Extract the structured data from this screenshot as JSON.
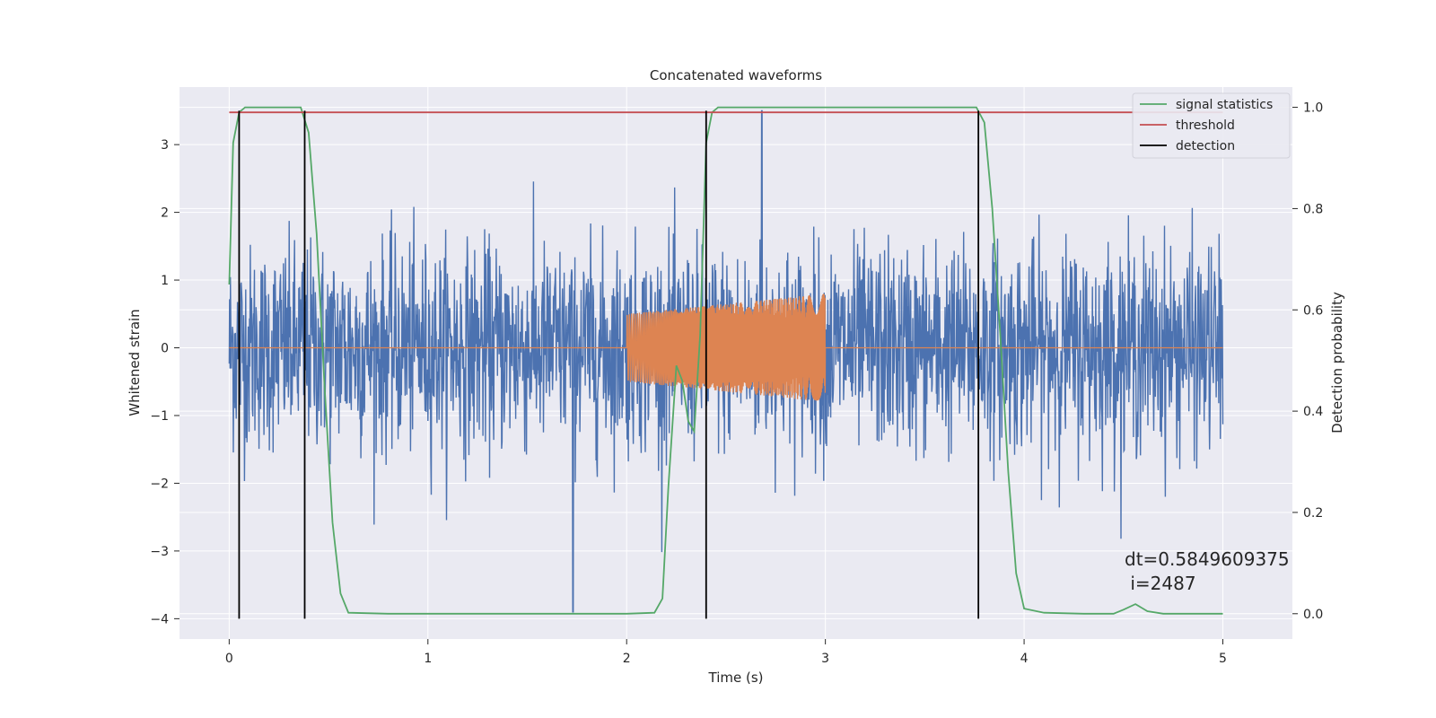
{
  "chart_data": {
    "type": "line",
    "title": "Concatenated waveforms",
    "xlabel": "Time (s)",
    "ylabel": "Whitened strain",
    "y2label": "Detection probability",
    "xlim": [
      -0.25,
      5.35
    ],
    "ylim": [
      -4.3,
      3.85
    ],
    "y2lim": [
      -0.05,
      1.04
    ],
    "x_ticks": [
      0,
      1,
      2,
      3,
      4,
      5
    ],
    "y_ticks": [
      -4,
      -3,
      -2,
      -1,
      0,
      1,
      2,
      3
    ],
    "y2_ticks": [
      0.0,
      0.2,
      0.4,
      0.6,
      0.8,
      1.0
    ],
    "x_tick_labels": [
      "0",
      "1",
      "2",
      "3",
      "4",
      "5"
    ],
    "y_tick_labels": [
      "−4",
      "−3",
      "−2",
      "−1",
      "0",
      "1",
      "2",
      "3"
    ],
    "y2_tick_labels": [
      "0.0",
      "0.2",
      "0.4",
      "0.6",
      "0.8",
      "1.0"
    ],
    "grid": true,
    "legend_position": "top-right",
    "series": [
      {
        "name": "",
        "axis": "left",
        "kind": "noise",
        "color": "#4c72b0",
        "x_range": [
          0,
          5
        ],
        "typical_amplitude": [
          -1.5,
          1.5
        ],
        "peak_max": 3.5,
        "peak_min": -3.9
      },
      {
        "name": "",
        "axis": "left",
        "kind": "chirp",
        "color": "#dd8452",
        "x_range": [
          2.0,
          3.0
        ],
        "amplitude_start": 0.5,
        "amplitude_end": 0.8,
        "baseline": 0
      },
      {
        "name": "signal statistics",
        "axis": "right",
        "color": "#55a868",
        "x": [
          0,
          0.02,
          0.05,
          0.08,
          0.12,
          0.2,
          0.3,
          0.36,
          0.4,
          0.44,
          0.48,
          0.52,
          0.56,
          0.6,
          0.8,
          1.0,
          1.5,
          2.0,
          2.14,
          2.18,
          2.21,
          2.25,
          2.28,
          2.31,
          2.34,
          2.37,
          2.4,
          2.43,
          2.46,
          2.6,
          3.0,
          3.5,
          3.76,
          3.8,
          3.84,
          3.88,
          3.92,
          3.96,
          4.0,
          4.1,
          4.3,
          4.45,
          4.5,
          4.56,
          4.62,
          4.7,
          5.0
        ],
        "y": [
          0.65,
          0.93,
          0.99,
          1.0,
          1.0,
          1.0,
          1.0,
          1.0,
          0.95,
          0.75,
          0.45,
          0.18,
          0.04,
          0.002,
          0.0,
          0.0,
          0.0,
          0.0,
          0.002,
          0.03,
          0.25,
          0.49,
          0.46,
          0.38,
          0.36,
          0.55,
          0.93,
          0.99,
          1.0,
          1.0,
          1.0,
          1.0,
          1.0,
          0.97,
          0.8,
          0.55,
          0.28,
          0.08,
          0.01,
          0.002,
          0.0,
          0.0,
          0.008,
          0.019,
          0.005,
          0.0,
          0.0
        ]
      },
      {
        "name": "threshold",
        "axis": "right",
        "color": "#c44e52",
        "x": [
          0,
          5
        ],
        "y": [
          0.99,
          0.99
        ]
      }
    ],
    "detections": {
      "name": "detection",
      "color": "#000000",
      "x": [
        0.05,
        0.38,
        2.4,
        3.77
      ],
      "y_range": [
        -4.0,
        3.5
      ]
    },
    "annotation": {
      "line1": "dt=0.5849609375",
      "line2": " i=2487"
    }
  },
  "colors": {
    "axes_bg": "#eaeaf2",
    "grid": "#ffffff",
    "text": "#262626"
  }
}
